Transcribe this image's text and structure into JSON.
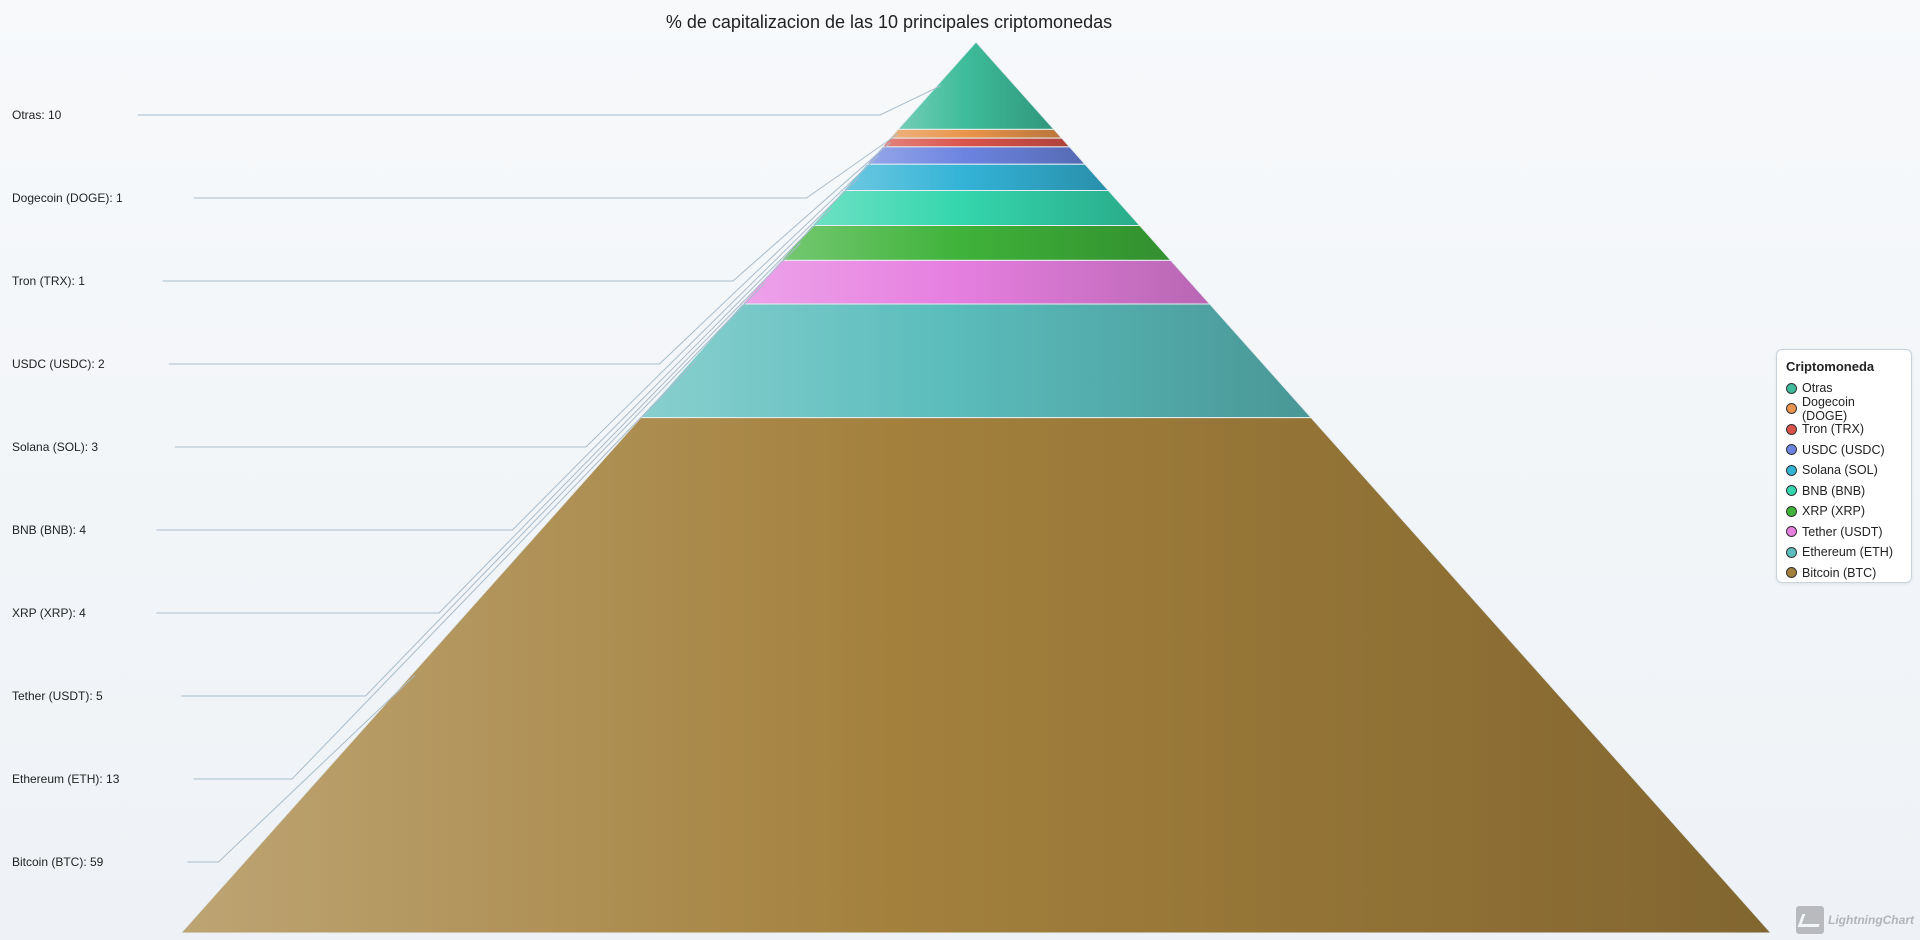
{
  "chart_data": {
    "type": "pyramid",
    "title": "% de capitalizacion de las 10 principales criptomonedas",
    "slices": [
      {
        "name": "Otras",
        "label": "Otras: 10",
        "value": 10,
        "color": "#3dbb9a"
      },
      {
        "name": "Dogecoin (DOGE)",
        "label": "Dogecoin (DOGE): 1",
        "value": 1,
        "color": "#e8944a"
      },
      {
        "name": "Tron (TRX)",
        "label": "Tron (TRX): 1",
        "value": 1,
        "color": "#d9534a"
      },
      {
        "name": "USDC (USDC)",
        "label": "USDC (USDC): 2",
        "value": 2,
        "color": "#6c84e0"
      },
      {
        "name": "Solana (SOL)",
        "label": "Solana (SOL): 3",
        "value": 3,
        "color": "#33b3d6"
      },
      {
        "name": "BNB (BNB)",
        "label": "BNB (BNB): 4",
        "value": 4,
        "color": "#34d6ad"
      },
      {
        "name": "XRP (XRP)",
        "label": "XRP (XRP): 4",
        "value": 4,
        "color": "#3fb33a"
      },
      {
        "name": "Tether (USDT)",
        "label": "Tether (USDT): 5",
        "value": 5,
        "color": "#e67fe0"
      },
      {
        "name": "Ethereum (ETH)",
        "label": "Ethereum (ETH): 13",
        "value": 13,
        "color": "#5bbdbc"
      },
      {
        "name": "Bitcoin (BTC)",
        "label": "Bitcoin (BTC): 59",
        "value": 59,
        "color": "#a3803c"
      }
    ],
    "legend": {
      "title": "Criptomoneda",
      "position": "right"
    }
  },
  "watermark": {
    "text": "LightningChart"
  }
}
